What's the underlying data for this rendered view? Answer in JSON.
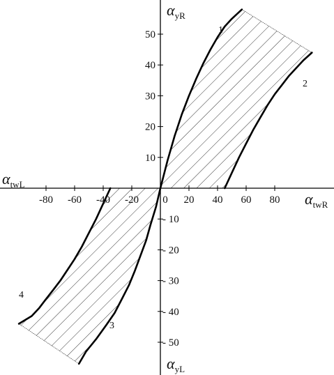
{
  "chart_data": {
    "type": "line",
    "title": "",
    "xlabel": {
      "left": {
        "base": "α",
        "sub": "twL"
      },
      "right": {
        "base": "α",
        "sub": "twR"
      }
    },
    "ylabel": {
      "top": {
        "base": "α",
        "sub": "yR"
      },
      "bottom": {
        "base": "α",
        "sub": "yL"
      }
    },
    "xlim": [
      -100,
      115
    ],
    "ylim": [
      -58,
      60
    ],
    "xticks": [
      {
        "v": -80,
        "label": "-80"
      },
      {
        "v": -60,
        "label": "-60"
      },
      {
        "v": -40,
        "label": "-40"
      },
      {
        "v": -20,
        "label": "-20"
      },
      {
        "v": 0,
        "label": "0"
      },
      {
        "v": 20,
        "label": "20"
      },
      {
        "v": 40,
        "label": "40"
      },
      {
        "v": 60,
        "label": "60"
      },
      {
        "v": 80,
        "label": "80"
      }
    ],
    "yticks": [
      {
        "v": 50,
        "label": "50"
      },
      {
        "v": 40,
        "label": "40"
      },
      {
        "v": 30,
        "label": "30"
      },
      {
        "v": 20,
        "label": "20"
      },
      {
        "v": 10,
        "label": "10"
      },
      {
        "v": -10,
        "label": "- 10"
      },
      {
        "v": -20,
        "label": "- 20"
      },
      {
        "v": -30,
        "label": "- 30"
      },
      {
        "v": -40,
        "label": "- 40"
      },
      {
        "v": -50,
        "label": "- 50"
      }
    ],
    "grid": false,
    "shading": "diagonal hatch between curves 1-2 and 3-4",
    "series": [
      {
        "name": "1",
        "x": [
          0,
          5,
          10,
          15,
          20,
          25,
          30,
          35,
          40,
          45,
          50,
          57
        ],
        "y": [
          0,
          9,
          17,
          24,
          30,
          35.5,
          40.5,
          45,
          49,
          52.5,
          55,
          58
        ]
      },
      {
        "name": "2",
        "x": [
          45,
          50,
          55,
          60,
          65,
          70,
          75,
          80,
          85,
          90,
          95,
          100,
          106
        ],
        "y": [
          0,
          5,
          10,
          14.5,
          19,
          23,
          27,
          30.5,
          33.5,
          36.5,
          39,
          41.5,
          44
        ]
      },
      {
        "name": "3",
        "x": [
          0,
          -3,
          -7,
          -10,
          -14,
          -18,
          -22,
          -27,
          -32,
          -38,
          -45,
          -52,
          -57
        ],
        "y": [
          0,
          -6,
          -12,
          -17,
          -22,
          -27,
          -31.5,
          -36,
          -40.5,
          -44.5,
          -49,
          -53,
          -57
        ]
      },
      {
        "name": "4",
        "x": [
          -35,
          -40,
          -45,
          -50,
          -55,
          -60,
          -65,
          -70,
          -75,
          -80,
          -85,
          -90,
          -99
        ],
        "y": [
          0,
          -5,
          -10,
          -14.5,
          -19,
          -23,
          -26.5,
          -30,
          -33,
          -36,
          -39,
          -41.5,
          -44
        ]
      }
    ],
    "closing_lines": [
      {
        "x": [
          57,
          106
        ],
        "y": [
          58,
          44
        ]
      },
      {
        "x": [
          -57,
          -99
        ],
        "y": [
          -57,
          -44
        ]
      }
    ]
  }
}
